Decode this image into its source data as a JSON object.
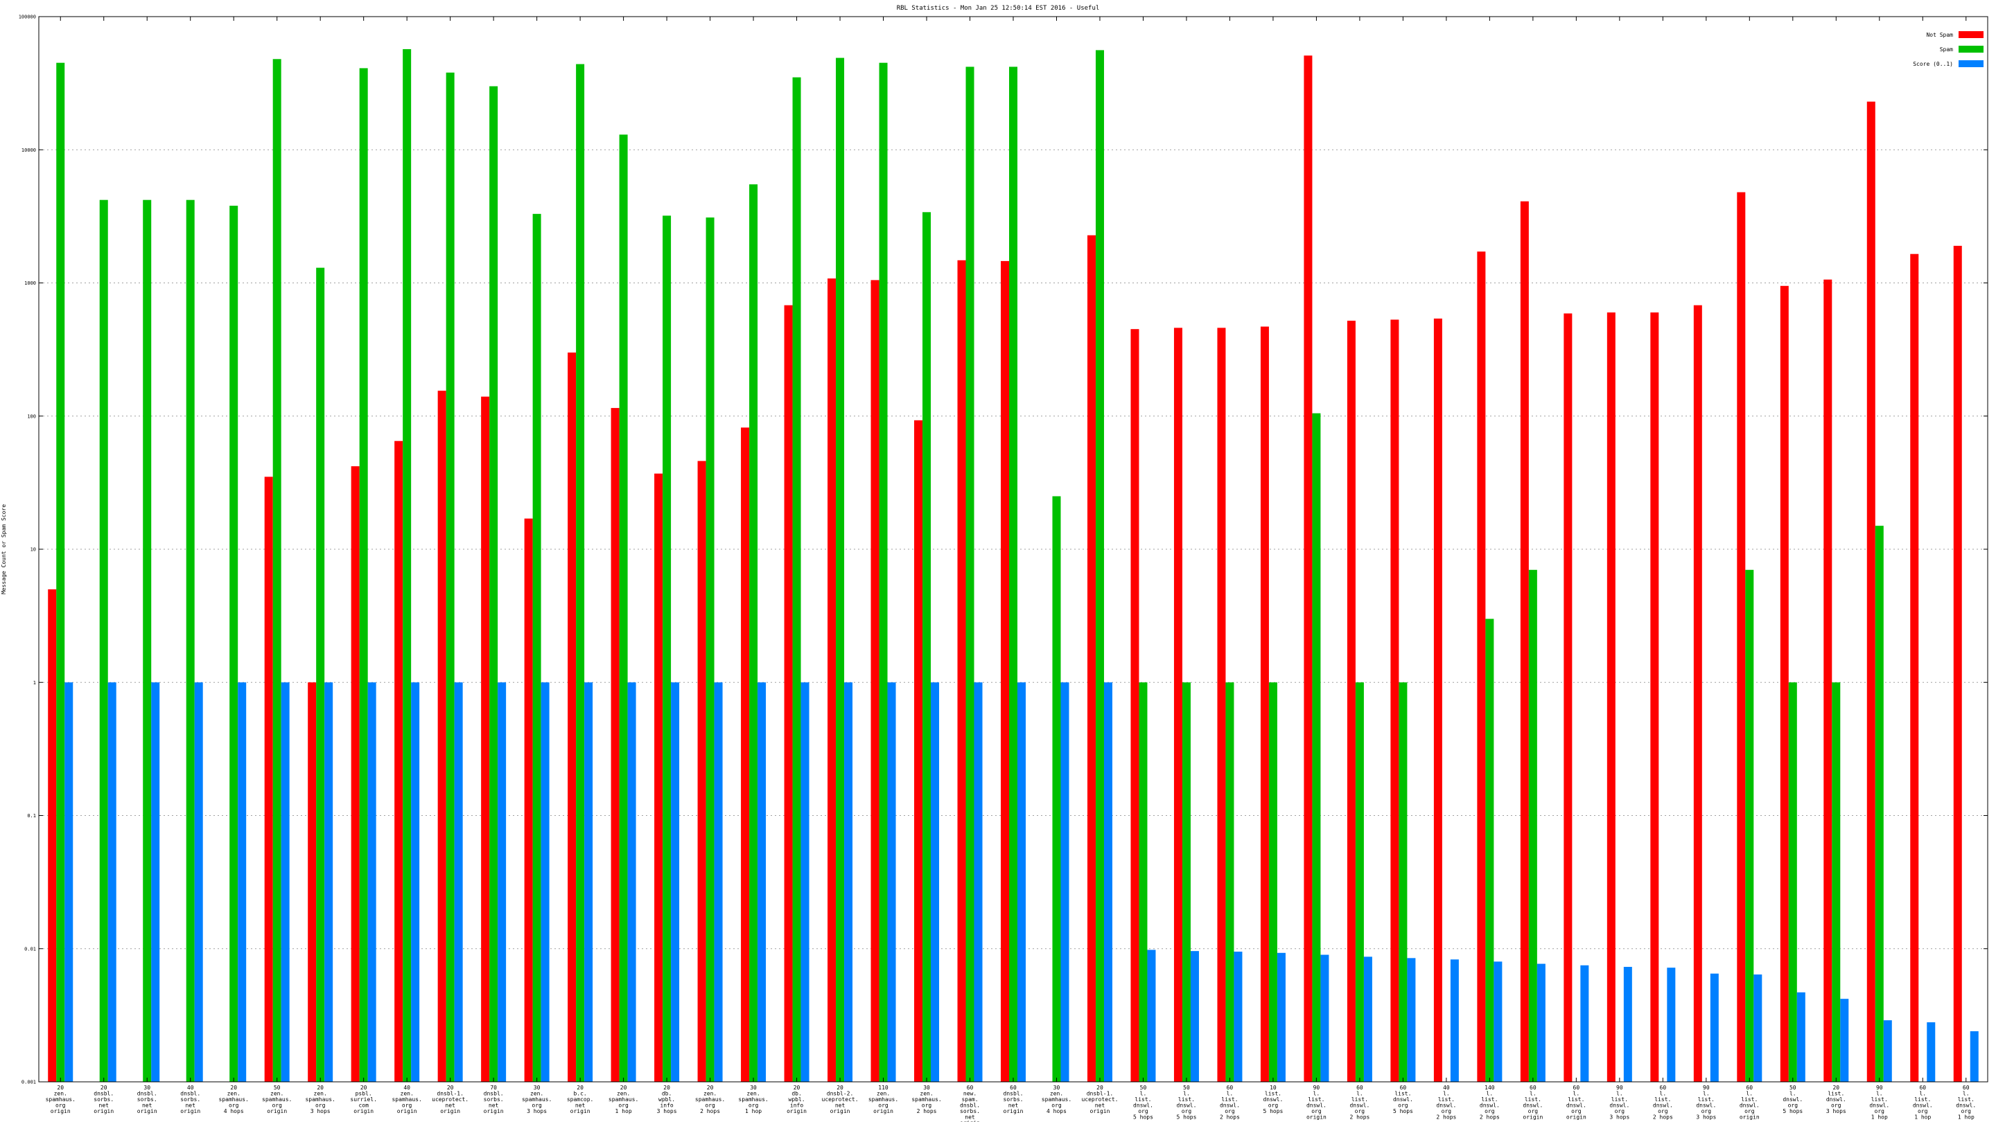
{
  "chart_data": {
    "type": "bar",
    "title": "RBL Statistics - Mon Jan 25 12:50:14 EST 2016 - Useful",
    "xlabel": "",
    "ylabel": "Message Count or Spam Score",
    "yscale": "log",
    "ylim": [
      0.001,
      100000
    ],
    "yticks": [
      {
        "value": 0.001,
        "label": "0.001"
      },
      {
        "value": 0.01,
        "label": "0.01"
      },
      {
        "value": 0.1,
        "label": "0.1"
      },
      {
        "value": 1,
        "label": "1"
      },
      {
        "value": 10,
        "label": "10"
      },
      {
        "value": 100,
        "label": "100"
      },
      {
        "value": 1000,
        "label": "1000"
      },
      {
        "value": 10000,
        "label": "10000"
      },
      {
        "value": 100000,
        "label": "100000"
      }
    ],
    "grid": true,
    "legend_position": "top-right",
    "categories": [
      [
        "20",
        "zen.",
        "spamhaus.",
        "org",
        "origin"
      ],
      [
        "20",
        "dnsbl.",
        "sorbs.",
        "net",
        "origin"
      ],
      [
        "30",
        "dnsbl.",
        "sorbs.",
        "net",
        "origin"
      ],
      [
        "40",
        "dnsbl.",
        "sorbs.",
        "net",
        "origin"
      ],
      [
        "20",
        "zen.",
        "spamhaus.",
        "org",
        "4 hops"
      ],
      [
        "50",
        "zen.",
        "spamhaus.",
        "org",
        "origin"
      ],
      [
        "20",
        "zen.",
        "spamhaus.",
        "org",
        "3 hops"
      ],
      [
        "20",
        "psbl.",
        "surriel.",
        "com",
        "origin"
      ],
      [
        "40",
        "zen.",
        "spamhaus.",
        "org",
        "origin"
      ],
      [
        "20",
        "dnsbl-1.",
        "uceprotect.",
        "net",
        "origin"
      ],
      [
        "70",
        "dnsbl.",
        "sorbs.",
        "net",
        "origin"
      ],
      [
        "30",
        "zen.",
        "spamhaus.",
        "org",
        "3 hops"
      ],
      [
        "20",
        "b.c.",
        "spamcop.",
        "net",
        "origin"
      ],
      [
        "20",
        "zen.",
        "spamhaus.",
        "org",
        "1 hop"
      ],
      [
        "20",
        "db.",
        "wpbl.",
        "info",
        "3 hops"
      ],
      [
        "20",
        "zen.",
        "spamhaus.",
        "org",
        "2 hops"
      ],
      [
        "30",
        "zen.",
        "spamhaus.",
        "org",
        "1 hop"
      ],
      [
        "20",
        "db.",
        "wpbl.",
        "info",
        "origin"
      ],
      [
        "20",
        "dnsbl-2.",
        "uceprotect.",
        "net",
        "origin"
      ],
      [
        "110",
        "zen.",
        "spamhaus.",
        "org",
        "origin"
      ],
      [
        "30",
        "zen.",
        "spamhaus.",
        "org",
        "2 hops"
      ],
      [
        "60",
        "new.",
        "spam.",
        "dnsbl.",
        "sorbs.",
        "net",
        "origin"
      ],
      [
        "60",
        "dnsbl.",
        "sorbs.",
        "net",
        "origin"
      ],
      [
        "30",
        "zen.",
        "spamhaus.",
        "org",
        "4 hops"
      ],
      [
        "20",
        "dnsbl-1.",
        "uceprotect.",
        "net",
        "origin"
      ],
      [
        "50",
        "l.",
        "list.",
        "dnswl.",
        "org",
        "5 hops"
      ],
      [
        "50",
        "l.",
        "list.",
        "dnswl.",
        "org",
        "5 hops"
      ],
      [
        "60",
        "l.",
        "list.",
        "dnswl.",
        "org",
        "2 hops"
      ],
      [
        "10",
        "list.",
        "dnswl.",
        "org",
        "5 hops"
      ],
      [
        "90",
        "l.",
        "list.",
        "dnswl.",
        "org",
        "origin"
      ],
      [
        "60",
        "l.",
        "list.",
        "dnswl.",
        "org",
        "2 hops"
      ],
      [
        "60",
        "list.",
        "dnswl.",
        "org",
        "5 hops"
      ],
      [
        "40",
        "l.",
        "list.",
        "dnswl.",
        "org",
        "2 hops"
      ],
      [
        "140",
        "l.",
        "list.",
        "dnswl.",
        "org",
        "2 hops"
      ],
      [
        "60",
        "l.",
        "list.",
        "dnswl.",
        "org",
        "origin"
      ],
      [
        "60",
        "l.",
        "list.",
        "dnswl.",
        "org",
        "origin"
      ],
      [
        "90",
        "l.",
        "list.",
        "dnswl.",
        "org",
        "3 hops"
      ],
      [
        "60",
        "l.",
        "list.",
        "dnswl.",
        "org",
        "2 hops"
      ],
      [
        "90",
        "l.",
        "list.",
        "dnswl.",
        "org",
        "3 hops"
      ],
      [
        "60",
        "l.",
        "list.",
        "dnswl.",
        "org",
        "origin"
      ],
      [
        "50",
        "l.",
        "dnswl.",
        "org",
        "5 hops"
      ],
      [
        "20",
        "list.",
        "dnswl.",
        "org",
        "3 hops"
      ],
      [
        "90",
        "l.",
        "list.",
        "dnswl.",
        "org",
        "1 hop"
      ],
      [
        "60",
        "l.",
        "list.",
        "dnswl.",
        "org",
        "1 hop"
      ],
      [
        "60",
        "l.",
        "list.",
        "dnswl.",
        "org",
        "1 hop"
      ]
    ],
    "series": [
      {
        "name": "Not Spam",
        "color": "#ff0000",
        "values": [
          5,
          null,
          null,
          null,
          null,
          35,
          1,
          42,
          65,
          155,
          140,
          17,
          300,
          115,
          37,
          46,
          82,
          680,
          1080,
          1050,
          93,
          1480,
          1460,
          null,
          2280,
          450,
          460,
          460,
          470,
          51000,
          520,
          530,
          540,
          1720,
          4100,
          590,
          600,
          600,
          680,
          4800,
          950,
          1060,
          23000,
          1650,
          1900
        ]
      },
      {
        "name": "Spam",
        "color": "#00c000",
        "values": [
          45000,
          4200,
          4200,
          4200,
          3800,
          48000,
          1300,
          41000,
          57000,
          38000,
          30000,
          3300,
          44000,
          13000,
          3200,
          3100,
          5500,
          35000,
          49000,
          45000,
          3400,
          42000,
          42000,
          25,
          56000,
          1,
          1,
          1,
          1,
          105,
          1,
          1,
          null,
          3,
          7,
          null,
          null,
          null,
          null,
          7,
          1,
          1,
          15,
          null,
          null
        ]
      },
      {
        "name": "Score (0..1)",
        "color": "#0080ff",
        "values": [
          1,
          1,
          1,
          1,
          1,
          1,
          1,
          1,
          1,
          1,
          1,
          1,
          1,
          1,
          1,
          1,
          1,
          1,
          1,
          1,
          1,
          1,
          1,
          1,
          1,
          0.0098,
          0.0096,
          0.0095,
          0.0093,
          0.009,
          0.0087,
          0.0085,
          0.0083,
          0.008,
          0.0077,
          0.0075,
          0.0073,
          0.0072,
          0.0065,
          0.0064,
          0.0047,
          0.0042,
          0.0029,
          0.0028,
          0.0024
        ]
      }
    ]
  }
}
